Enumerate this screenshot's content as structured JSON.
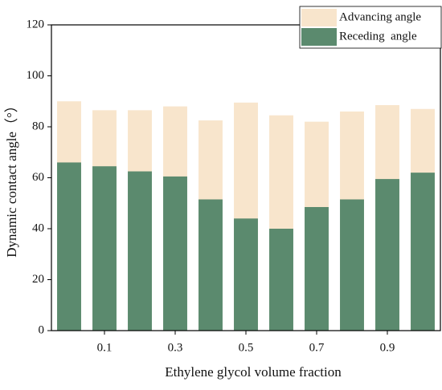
{
  "chart_data": {
    "type": "bar",
    "xlabel": "Ethylene glycol volume fraction",
    "ylabel": "Dynamic contact angle（°）",
    "categories": [
      null,
      "0.1",
      null,
      "0.3",
      null,
      "0.5",
      null,
      "0.7",
      null,
      "0.9",
      null
    ],
    "series": [
      {
        "name": "Advancing angle",
        "color": "#f8e5cc",
        "values": [
          90,
          86.5,
          86.5,
          88,
          82.5,
          89.5,
          84.5,
          82,
          86,
          88.5,
          87
        ]
      },
      {
        "name": "Receding  angle",
        "color": "#5b8a6e",
        "values": [
          66,
          64.5,
          62.5,
          60.5,
          51.5,
          44,
          40,
          48.5,
          51.5,
          59.5,
          62
        ]
      }
    ],
    "ylim": [
      0,
      120
    ],
    "yticks": [
      0,
      20,
      40,
      60,
      80,
      100,
      120
    ],
    "legend": "upper right"
  }
}
